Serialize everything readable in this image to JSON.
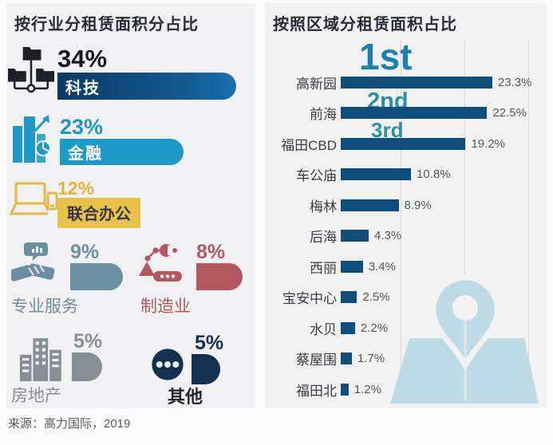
{
  "source_note": "来源：高力国际，2019",
  "colors": {
    "panel_bg": "#f1f0f2",
    "title_text": "#272c37",
    "rank_first": "#1c80b4",
    "rank_other": "#2b8fa6",
    "region_bar": "#0f4e7c",
    "value_label": "#56565e"
  },
  "chart_data": [
    {
      "type": "bar",
      "subtype": "pictogram-infographic",
      "title": "按行业分租赁面积分占比",
      "unit": "%",
      "items": [
        {
          "label": "科技",
          "value": 34,
          "value_label": "34%",
          "color": "#0c4273",
          "number_color": "#17171f",
          "icon": "network-folders-icon",
          "icon_color": "#1c2129"
        },
        {
          "label": "金融",
          "value": 23,
          "value_label": "23%",
          "color": "#1d9ac6",
          "number_color": "#1d96c2",
          "icon": "buildings-growth-icon",
          "icon_color": "#1d9ac6"
        },
        {
          "label": "联合办公",
          "value": 12,
          "value_label": "12%",
          "color": "#e9c24b",
          "number_color": "#e2b63c",
          "icon": "laptop-icon",
          "icon_color": "#e3ba42"
        },
        {
          "label": "专业服务",
          "value": 9,
          "value_label": "9%",
          "color": "#6b90a2",
          "number_color": "#6b90a2",
          "icon": "handshake-icon",
          "icon_color": "#6b90a2"
        },
        {
          "label": "制造业",
          "value": 8,
          "value_label": "8%",
          "color": "#b2585f",
          "number_color": "#b2585f",
          "icon": "robot-arm-icon",
          "icon_color": "#b2585f"
        },
        {
          "label": "房地产",
          "value": 5,
          "value_label": "5%",
          "color": "#878f96",
          "number_color": "#878f96",
          "icon": "buildings-icon",
          "icon_color": "#878f96"
        },
        {
          "label": "其他",
          "value": 5,
          "value_label": "5%",
          "color": "#12304f",
          "number_color": "#12304f",
          "icon": "ellipsis-icon",
          "icon_color": "#12304f",
          "label_color": "#23272e"
        }
      ]
    },
    {
      "type": "bar",
      "orientation": "horizontal",
      "title": "按照区域分租赁面积占比",
      "unit": "%",
      "xlim": [
        0,
        31
      ],
      "grid": "faint-vertical",
      "bar_color": "#0f4e7c",
      "categories": [
        "高新园",
        "前海",
        "福田CBD",
        "车公庙",
        "梅林",
        "后海",
        "西丽",
        "宝安中心",
        "水贝",
        "蔡屋围",
        "福田北"
      ],
      "values": [
        23.3,
        22.5,
        19.2,
        10.8,
        8.9,
        4.3,
        3.4,
        2.5,
        2.2,
        1.7,
        1.2
      ],
      "value_labels": [
        "23.3%",
        "22.5%",
        "19.2%",
        "10.8%",
        "8.9%",
        "4.3%",
        "3.4%",
        "2.5%",
        "2.2%",
        "1.7%",
        "1.2%"
      ],
      "rank_annotations": [
        {
          "rank": "1st",
          "category": "高新园"
        },
        {
          "rank": "2nd",
          "category": "前海"
        },
        {
          "rank": "3rd",
          "category": "福田CBD"
        }
      ]
    }
  ]
}
